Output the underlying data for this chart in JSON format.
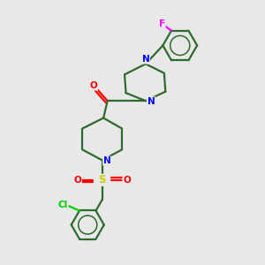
{
  "bg_color": "#e8e8e8",
  "bond_color": "#2d6b2d",
  "atom_colors": {
    "N": "#0000ff",
    "O": "#ff0000",
    "S": "#cccc00",
    "Cl": "#00cc00",
    "F": "#ff00ff",
    "C": "#2d6b2d"
  },
  "figsize": [
    3.0,
    3.0
  ],
  "dpi": 100
}
